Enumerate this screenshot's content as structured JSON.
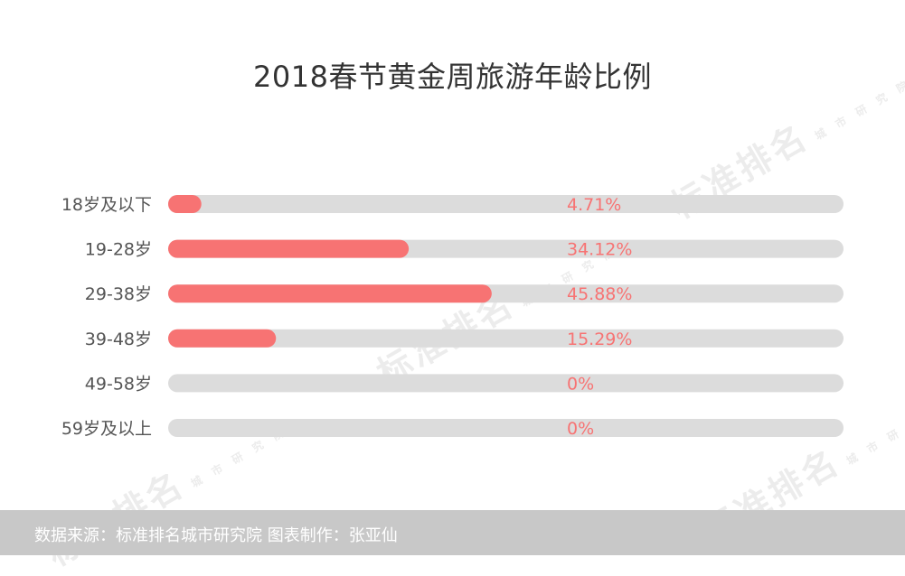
{
  "chart_data": {
    "type": "bar",
    "title": "2018春节黄金周旅游年龄比例",
    "categories": [
      "18岁及以下",
      "19-28岁",
      "29-38岁",
      "39-48岁",
      "49-58岁",
      "59岁及以上"
    ],
    "values": [
      4.71,
      34.12,
      45.88,
      15.29,
      0,
      0
    ],
    "value_labels": [
      "4.71%",
      "34.12%",
      "45.88%",
      "15.29%",
      "0%",
      "0%"
    ],
    "xlim": [
      0,
      100
    ],
    "orientation": "horizontal",
    "colors": {
      "bar": "#f77373",
      "track": "#dcdcdc",
      "value_label": "#f77373",
      "category_label": "#555555"
    }
  },
  "watermark": {
    "text": "标准排名",
    "sub": "城市研究院"
  },
  "footer": {
    "text": "数据来源：标准排名城市研究院  图表制作：张亚仙"
  }
}
